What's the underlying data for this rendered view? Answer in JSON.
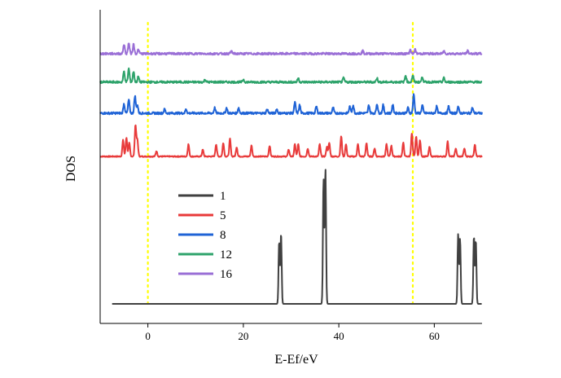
{
  "chart_data": {
    "type": "line",
    "title": "",
    "xlabel": "E-Ef/eV",
    "ylabel": "DOS",
    "xlim": [
      -10,
      70
    ],
    "x_ticks": [
      0,
      20,
      40,
      60
    ],
    "y_ticks": "none",
    "reference_lines": {
      "color": "#ffff00",
      "style": "dotted",
      "x": [
        0,
        55.5
      ]
    },
    "legend": {
      "placement": "center-left",
      "frame": false
    },
    "series": [
      {
        "name": "1",
        "color": "#404040",
        "baseline": 0,
        "peaks": [
          [
            27.5,
            0.46
          ],
          [
            27.9,
            0.52
          ],
          [
            36.8,
            0.92
          ],
          [
            37.2,
            1.0
          ],
          [
            65.0,
            0.52
          ],
          [
            65.4,
            0.48
          ],
          [
            68.3,
            0.5
          ],
          [
            68.7,
            0.47
          ]
        ]
      },
      {
        "name": "5",
        "color": "#e83a3a",
        "baseline": 1.09,
        "peaks": [
          [
            -5.2,
            0.12
          ],
          [
            -4.5,
            0.14
          ],
          [
            -3.9,
            0.1
          ],
          [
            -2.6,
            0.23
          ],
          [
            -2.2,
            0.12
          ],
          [
            1.8,
            0.04
          ],
          [
            8.5,
            0.09
          ],
          [
            11.5,
            0.05
          ],
          [
            14.3,
            0.09
          ],
          [
            15.8,
            0.1
          ],
          [
            17.2,
            0.13
          ],
          [
            18.6,
            0.07
          ],
          [
            21.7,
            0.08
          ],
          [
            25.5,
            0.08
          ],
          [
            29.5,
            0.05
          ],
          [
            30.8,
            0.09
          ],
          [
            31.5,
            0.09
          ],
          [
            33.5,
            0.06
          ],
          [
            36.0,
            0.09
          ],
          [
            37.5,
            0.07
          ],
          [
            38.0,
            0.1
          ],
          [
            40.5,
            0.15
          ],
          [
            41.5,
            0.09
          ],
          [
            44.0,
            0.09
          ],
          [
            45.8,
            0.1
          ],
          [
            47.5,
            0.06
          ],
          [
            50.0,
            0.09
          ],
          [
            51.0,
            0.08
          ],
          [
            53.5,
            0.1
          ],
          [
            55.3,
            0.17
          ],
          [
            56.2,
            0.15
          ],
          [
            57.0,
            0.12
          ],
          [
            59.0,
            0.07
          ],
          [
            62.8,
            0.11
          ],
          [
            64.5,
            0.06
          ],
          [
            66.3,
            0.06
          ],
          [
            68.5,
            0.09
          ]
        ]
      },
      {
        "name": "8",
        "color": "#1f63d6",
        "baseline": 1.41,
        "peaks": [
          [
            -5.0,
            0.07
          ],
          [
            -4.0,
            0.1
          ],
          [
            -2.7,
            0.13
          ],
          [
            -2.2,
            0.06
          ],
          [
            3.5,
            0.03
          ],
          [
            8.0,
            0.03
          ],
          [
            14.0,
            0.04
          ],
          [
            16.5,
            0.04
          ],
          [
            19.0,
            0.04
          ],
          [
            25.0,
            0.03
          ],
          [
            27.0,
            0.03
          ],
          [
            30.8,
            0.08
          ],
          [
            31.8,
            0.06
          ],
          [
            35.3,
            0.05
          ],
          [
            38.8,
            0.04
          ],
          [
            42.3,
            0.05
          ],
          [
            43.0,
            0.06
          ],
          [
            46.3,
            0.06
          ],
          [
            48.0,
            0.07
          ],
          [
            49.3,
            0.06
          ],
          [
            51.3,
            0.06
          ],
          [
            54.5,
            0.04
          ],
          [
            55.7,
            0.14
          ],
          [
            57.5,
            0.06
          ],
          [
            60.5,
            0.05
          ],
          [
            63.0,
            0.05
          ],
          [
            65.0,
            0.05
          ],
          [
            68.0,
            0.04
          ]
        ]
      },
      {
        "name": "12",
        "color": "#2ea36b",
        "baseline": 1.64,
        "peaks": [
          [
            -5.0,
            0.08
          ],
          [
            -4.0,
            0.1
          ],
          [
            -3.0,
            0.08
          ],
          [
            -2.0,
            0.04
          ],
          [
            12.0,
            0.02
          ],
          [
            20.0,
            0.02
          ],
          [
            31.5,
            0.03
          ],
          [
            41.0,
            0.03
          ],
          [
            48.0,
            0.03
          ],
          [
            54.0,
            0.05
          ],
          [
            55.5,
            0.05
          ],
          [
            57.5,
            0.04
          ],
          [
            62.0,
            0.03
          ]
        ]
      },
      {
        "name": "16",
        "color": "#9a6fd6",
        "baseline": 1.85,
        "peaks": [
          [
            -5.0,
            0.07
          ],
          [
            -4.0,
            0.08
          ],
          [
            -3.0,
            0.07
          ],
          [
            -2.0,
            0.03
          ],
          [
            17.5,
            0.02
          ],
          [
            45.0,
            0.02
          ],
          [
            55.0,
            0.03
          ],
          [
            56.0,
            0.03
          ],
          [
            62.0,
            0.02
          ],
          [
            67.0,
            0.02
          ]
        ]
      }
    ]
  }
}
